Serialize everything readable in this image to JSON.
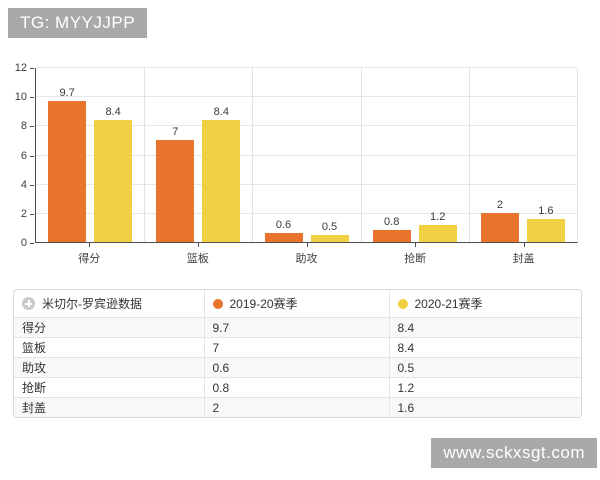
{
  "watermarks": {
    "top": "TG: MYYJJPP",
    "bottom": "www.sckxsgt.com"
  },
  "colors": {
    "badge_bg": "#a9a9a9",
    "season1": "#e8742e",
    "season2": "#f2d044",
    "grid": "#e7e7e7",
    "axis": "#4d4d4d"
  },
  "chart_data": {
    "type": "bar",
    "title": "",
    "categories": [
      "得分",
      "篮板",
      "助攻",
      "抢断",
      "封盖"
    ],
    "series": [
      {
        "name": "2019-20赛季",
        "color": "#e8742e",
        "values": [
          9.7,
          7,
          0.6,
          0.8,
          2
        ]
      },
      {
        "name": "2020-21赛季",
        "color": "#f2d044",
        "values": [
          8.4,
          8.4,
          0.5,
          1.2,
          1.6
        ]
      }
    ],
    "xlabel": "",
    "ylabel": "",
    "ylim": [
      0,
      12
    ],
    "yticks": [
      0,
      2,
      4,
      6,
      8,
      10,
      12
    ],
    "grid": true,
    "legend_position": "table-header"
  },
  "table": {
    "columns": [
      "米切尔-罗宾逊数据",
      "2019-20赛季",
      "2020-21赛季"
    ],
    "rows": [
      {
        "label": "得分",
        "s1": "9.7",
        "s2": "8.4"
      },
      {
        "label": "篮板",
        "s1": "7",
        "s2": "8.4"
      },
      {
        "label": "助攻",
        "s1": "0.6",
        "s2": "0.5"
      },
      {
        "label": "抢断",
        "s1": "0.8",
        "s2": "1.2"
      },
      {
        "label": "封盖",
        "s1": "2",
        "s2": "1.6"
      }
    ]
  }
}
